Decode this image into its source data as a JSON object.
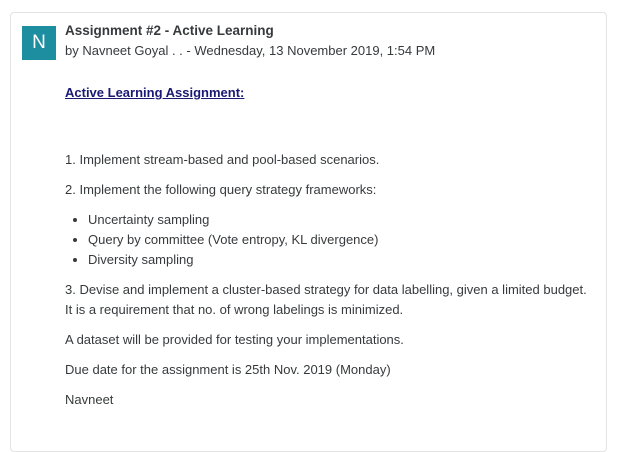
{
  "post": {
    "avatar_initial": "N",
    "subject": "Assignment #2 - Active Learning",
    "byline": "by Navneet Goyal . . - Wednesday, 13 November 2019, 1:54 PM",
    "heading": "Active Learning Assignment:",
    "paragraphs": [
      "1. Implement stream-based and pool-based scenarios.",
      "2. Implement the following query strategy frameworks:"
    ],
    "bullets": [
      "Uncertainty  sampling",
      "Query by committee (Vote entropy, KL divergence)",
      "Diversity sampling"
    ],
    "after_paragraphs": [
      "3. Devise and implement a cluster-based strategy for data labelling, given a limited budget. It is a requirement that no. of wrong labelings is minimized.",
      "A dataset will be provided for testing your implementations.",
      "Due date for the assignment is 25th Nov. 2019 (Monday)",
      "Navneet"
    ]
  },
  "colors": {
    "avatar_bg": "#1d8da0",
    "heading": "#1a1a73",
    "text": "#373a3c"
  }
}
